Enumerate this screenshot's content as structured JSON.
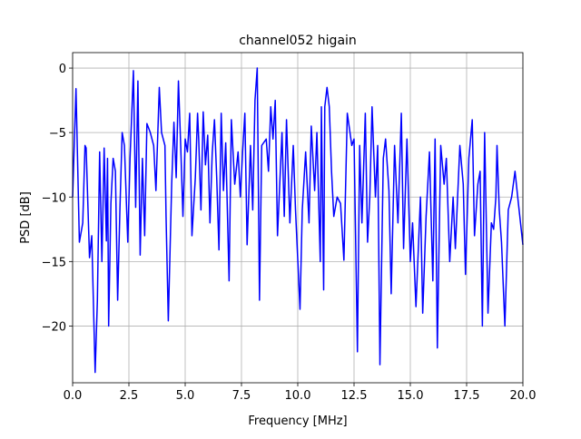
{
  "chart_data": {
    "type": "line",
    "title": "channel052 higain",
    "x_label": "Frequency [MHz]",
    "y_label": "PSD [dB]",
    "x": [
      0,
      0.15,
      0.3,
      0.45,
      0.55,
      0.6,
      0.75,
      0.85,
      1.0,
      1.1,
      1.2,
      1.3,
      1.4,
      1.5,
      1.55,
      1.6,
      1.7,
      1.8,
      1.9,
      2.0,
      2.1,
      2.2,
      2.3,
      2.45,
      2.55,
      2.7,
      2.8,
      2.9,
      3.0,
      3.1,
      3.2,
      3.3,
      3.45,
      3.6,
      3.7,
      3.85,
      3.95,
      4.1,
      4.15,
      4.25,
      4.4,
      4.5,
      4.6,
      4.7,
      4.8,
      4.9,
      5.0,
      5.1,
      5.2,
      5.3,
      5.45,
      5.55,
      5.6,
      5.7,
      5.8,
      5.9,
      6.0,
      6.1,
      6.2,
      6.3,
      6.4,
      6.5,
      6.6,
      6.7,
      6.8,
      6.95,
      7.05,
      7.2,
      7.35,
      7.45,
      7.55,
      7.65,
      7.75,
      7.9,
      8.0,
      8.1,
      8.2,
      8.3,
      8.4,
      8.6,
      8.7,
      8.8,
      8.9,
      9.0,
      9.1,
      9.3,
      9.4,
      9.5,
      9.65,
      9.8,
      9.9,
      10.1,
      10.2,
      10.35,
      10.5,
      10.6,
      10.75,
      10.85,
      11.0,
      11.05,
      11.15,
      11.2,
      11.3,
      11.4,
      11.5,
      11.6,
      11.75,
      11.9,
      12.05,
      12.2,
      12.4,
      12.5,
      12.65,
      12.75,
      12.85,
      13.0,
      13.1,
      13.2,
      13.3,
      13.45,
      13.55,
      13.65,
      13.8,
      13.9,
      14.05,
      14.15,
      14.3,
      14.45,
      14.6,
      14.7,
      14.85,
      15.0,
      15.1,
      15.25,
      15.45,
      15.55,
      15.7,
      15.85,
      16.0,
      16.1,
      16.2,
      16.35,
      16.5,
      16.6,
      16.75,
      16.9,
      17.0,
      17.2,
      17.35,
      17.45,
      17.6,
      17.75,
      17.85,
      18.0,
      18.1,
      18.2,
      18.3,
      18.45,
      18.6,
      18.7,
      18.8,
      18.85,
      18.95,
      19.05,
      19.2,
      19.35,
      19.5,
      19.65,
      19.8,
      20.0
    ],
    "series": [
      {
        "name": "PSD",
        "color": "#0000ff",
        "values": [
          -10,
          -1.6,
          -13.5,
          -12,
          -6,
          -6.2,
          -14.7,
          -13,
          -23.6,
          -18,
          -6.5,
          -15,
          -6.2,
          -13.4,
          -7,
          -20,
          -10.5,
          -7,
          -8,
          -18,
          -11,
          -5,
          -6,
          -13.5,
          -7,
          -0.2,
          -10.8,
          -1,
          -14.5,
          -7,
          -13,
          -4.3,
          -5,
          -6,
          -9.5,
          -1.5,
          -5,
          -6,
          -11.5,
          -19.6,
          -9,
          -4.2,
          -8.5,
          -1,
          -6,
          -11.5,
          -5.5,
          -6.5,
          -3.5,
          -13,
          -8.5,
          -3.5,
          -5.5,
          -11,
          -3.4,
          -7.5,
          -5.2,
          -12,
          -6.6,
          -4,
          -8.5,
          -14.1,
          -3.5,
          -9.5,
          -5.8,
          -16.5,
          -4,
          -9,
          -6.5,
          -10,
          -6.5,
          -3.5,
          -13.7,
          -6,
          -11,
          -2.5,
          0,
          -18,
          -6,
          -5.5,
          -8,
          -3,
          -5.5,
          -2.5,
          -13,
          -5,
          -11.5,
          -4,
          -12,
          -6,
          -11,
          -18.7,
          -11,
          -6.5,
          -12,
          -4.5,
          -9.5,
          -5,
          -15,
          -3,
          -17.2,
          -3,
          -1.5,
          -3,
          -8,
          -11.5,
          -10,
          -10.5,
          -14.9,
          -3.5,
          -6,
          -5.5,
          -22,
          -6,
          -12,
          -3.5,
          -13.5,
          -10,
          -3,
          -10,
          -6,
          -23,
          -7,
          -5.5,
          -9.5,
          -17.5,
          -6,
          -12,
          -3.5,
          -14,
          -5.5,
          -15,
          -12,
          -18.5,
          -10,
          -19,
          -11.5,
          -6.5,
          -16.5,
          -5.5,
          -21.7,
          -6,
          -9,
          -7,
          -15,
          -10,
          -14,
          -6,
          -9,
          -16,
          -7,
          -4,
          -13,
          -9,
          -8,
          -20,
          -5,
          -19,
          -12,
          -12.5,
          -10,
          -6,
          -11,
          -13.5,
          -20,
          -11,
          -10,
          -8,
          -10.5,
          -13.7
        ]
      }
    ],
    "xlim": [
      0,
      20
    ],
    "ylim": [
      -24.4,
      1.2
    ],
    "xticks": [
      {
        "value": 0,
        "label": "0.0"
      },
      2.5,
      {
        "value": 5,
        "label": "5.0"
      },
      7.5,
      {
        "value": 10,
        "label": "10.0"
      },
      12.5,
      {
        "value": 15,
        "label": "15.0"
      },
      17.5,
      {
        "value": 20,
        "label": "20.0"
      }
    ],
    "yticks": [
      {
        "value": -20,
        "label": "−20"
      },
      {
        "value": -15,
        "label": "−15"
      },
      {
        "value": -10,
        "label": "−10"
      },
      {
        "value": -5,
        "label": "−5"
      },
      0
    ],
    "grid": true
  }
}
